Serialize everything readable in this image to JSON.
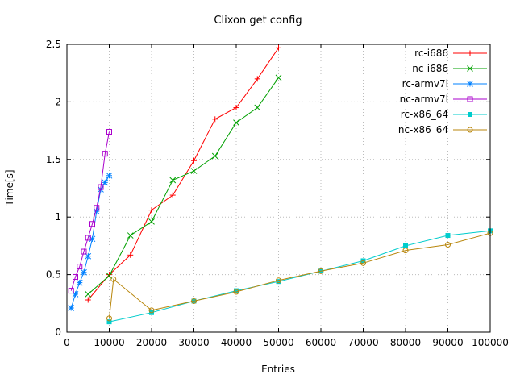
{
  "chart_data": {
    "type": "line",
    "title": "Clixon get config",
    "xlabel": "Entries",
    "ylabel": "Time[s]",
    "xlim": [
      0,
      100000
    ],
    "ylim": [
      0,
      2.5
    ],
    "xticks": [
      0,
      10000,
      20000,
      30000,
      40000,
      50000,
      60000,
      70000,
      80000,
      90000,
      100000
    ],
    "yticks": [
      0,
      0.5,
      1,
      1.5,
      2,
      2.5
    ],
    "grid": true,
    "legend_position": "top-right",
    "background_color": "#ffffff",
    "series": [
      {
        "name": "rc-i686",
        "color": "#ff0000",
        "marker": "plus",
        "points": [
          [
            5000,
            0.28
          ],
          [
            10000,
            0.5
          ],
          [
            15000,
            0.67
          ],
          [
            20000,
            1.06
          ],
          [
            25000,
            1.19
          ],
          [
            30000,
            1.49
          ],
          [
            35000,
            1.85
          ],
          [
            40000,
            1.95
          ],
          [
            45000,
            2.2
          ],
          [
            50000,
            2.47
          ]
        ]
      },
      {
        "name": "nc-i686",
        "color": "#00a000",
        "marker": "cross",
        "points": [
          [
            5000,
            0.33
          ],
          [
            10000,
            0.49
          ],
          [
            15000,
            0.84
          ],
          [
            20000,
            0.96
          ],
          [
            25000,
            1.32
          ],
          [
            30000,
            1.4
          ],
          [
            35000,
            1.53
          ],
          [
            40000,
            1.82
          ],
          [
            45000,
            1.95
          ],
          [
            50000,
            2.21
          ]
        ]
      },
      {
        "name": "rc-armv7l",
        "color": "#0080ff",
        "marker": "asterisk",
        "points": [
          [
            1000,
            0.21
          ],
          [
            2000,
            0.33
          ],
          [
            3000,
            0.43
          ],
          [
            4000,
            0.52
          ],
          [
            5000,
            0.66
          ],
          [
            6000,
            0.81
          ],
          [
            7000,
            1.05
          ],
          [
            8000,
            1.24
          ],
          [
            9000,
            1.3
          ],
          [
            10000,
            1.36
          ]
        ]
      },
      {
        "name": "nc-armv7l",
        "color": "#aa00cc",
        "marker": "square-open",
        "points": [
          [
            1000,
            0.36
          ],
          [
            2000,
            0.48
          ],
          [
            3000,
            0.57
          ],
          [
            4000,
            0.7
          ],
          [
            5000,
            0.82
          ],
          [
            6000,
            0.94
          ],
          [
            7000,
            1.08
          ],
          [
            8000,
            1.26
          ],
          [
            9000,
            1.55
          ],
          [
            10000,
            1.74
          ]
        ]
      },
      {
        "name": "rc-x86_64",
        "color": "#00cccc",
        "marker": "square-filled",
        "points": [
          [
            10000,
            0.09
          ],
          [
            20000,
            0.17
          ],
          [
            30000,
            0.27
          ],
          [
            40000,
            0.36
          ],
          [
            50000,
            0.44
          ],
          [
            60000,
            0.53
          ],
          [
            70000,
            0.62
          ],
          [
            80000,
            0.75
          ],
          [
            90000,
            0.84
          ],
          [
            100000,
            0.88
          ]
        ]
      },
      {
        "name": "nc-x86_64",
        "color": "#b8860b",
        "marker": "circle-open",
        "points": [
          [
            10000,
            0.12
          ],
          [
            11000,
            0.46
          ],
          [
            20000,
            0.19
          ],
          [
            30000,
            0.27
          ],
          [
            40000,
            0.35
          ],
          [
            50000,
            0.45
          ],
          [
            60000,
            0.53
          ],
          [
            70000,
            0.6
          ],
          [
            80000,
            0.71
          ],
          [
            90000,
            0.76
          ],
          [
            100000,
            0.86
          ]
        ]
      }
    ]
  }
}
